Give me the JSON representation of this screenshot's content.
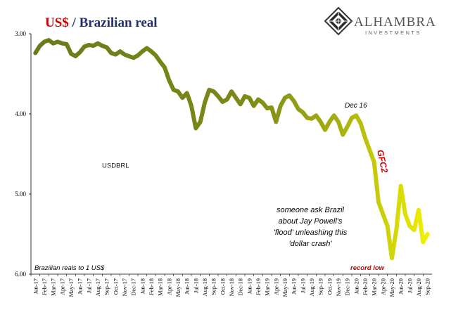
{
  "title": {
    "part1": "US$",
    "part2": " / Brazilian real"
  },
  "logo": {
    "name": "ALHAMBRA",
    "sub": "INVESTMENTS"
  },
  "colors": {
    "title_usd": "#cc0000",
    "title_rest": "#1f2f73",
    "line_start": "#6b7a1a",
    "line_end": "#f0f000",
    "annotation_red": "#cc0000"
  },
  "chart_data": {
    "type": "line",
    "y_reversed": true,
    "ylim": [
      3.0,
      6.0
    ],
    "y_ticks": [
      "3.00",
      "4.00",
      "5.00",
      "6.00"
    ],
    "y_tick_values": [
      3.0,
      4.0,
      5.0,
      6.0
    ],
    "x_ticks": [
      "Jan-17",
      "Feb-17",
      "Mar-17",
      "Apr-17",
      "May-17",
      "Jun-17",
      "Jul-17",
      "Aug-17",
      "Sep-17",
      "Oct-17",
      "Nov-17",
      "Dec-17",
      "Jan-18",
      "Feb-18",
      "Mar-18",
      "Apr-18",
      "May-18",
      "Jun-18",
      "Jul-18",
      "Aug-18",
      "Sep-18",
      "Oct-18",
      "Nov-18",
      "Dec-18",
      "Jan-19",
      "Feb-19",
      "Mar-19",
      "Apr-19",
      "May-19",
      "Jun-19",
      "Jul-19",
      "Aug-19",
      "Sep-19",
      "Oct-19",
      "Nov-19",
      "Dec-19",
      "Jan-20",
      "Feb-20",
      "Mar-20",
      "Apr-20",
      "May-20",
      "Jun-20",
      "Jul-20",
      "Aug-20",
      "Sep-20"
    ],
    "series": [
      {
        "name": "USDBRL",
        "x": [
          0,
          0.5,
          1,
          1.5,
          2,
          2.5,
          3,
          3.5,
          4,
          4.5,
          5,
          5.5,
          6,
          6.5,
          7,
          7.5,
          8,
          8.5,
          9,
          9.5,
          10,
          10.5,
          11,
          11.5,
          12,
          12.5,
          13,
          13.5,
          14,
          14.5,
          15,
          15.5,
          16,
          16.5,
          17,
          17.5,
          18,
          18.5,
          19,
          19.5,
          20,
          20.5,
          21,
          21.5,
          22,
          22.5,
          23,
          23.5,
          24,
          24.5,
          25,
          25.5,
          26,
          26.5,
          27,
          27.5,
          28,
          28.5,
          29,
          29.5,
          30,
          30.5,
          31,
          31.5,
          32,
          32.5,
          33,
          33.5,
          34,
          34.5,
          35,
          35.5,
          36,
          36.5,
          37,
          37.5,
          38,
          38.5,
          39,
          39.5,
          40,
          40.5,
          41,
          41.5,
          42,
          42.5,
          43,
          43.5,
          44
        ],
        "values": [
          3.24,
          3.15,
          3.1,
          3.08,
          3.12,
          3.1,
          3.12,
          3.13,
          3.25,
          3.28,
          3.23,
          3.16,
          3.14,
          3.15,
          3.12,
          3.15,
          3.17,
          3.24,
          3.26,
          3.22,
          3.26,
          3.28,
          3.3,
          3.27,
          3.22,
          3.18,
          3.22,
          3.27,
          3.35,
          3.42,
          3.58,
          3.7,
          3.72,
          3.8,
          3.74,
          3.9,
          4.18,
          4.1,
          3.86,
          3.7,
          3.72,
          3.78,
          3.85,
          3.82,
          3.72,
          3.8,
          3.88,
          3.78,
          3.8,
          3.9,
          3.82,
          3.86,
          3.93,
          3.92,
          4.1,
          3.9,
          3.8,
          3.77,
          3.84,
          3.94,
          3.98,
          4.05,
          4.06,
          4.02,
          4.1,
          4.2,
          4.1,
          4.02,
          4.1,
          4.26,
          4.16,
          4.05,
          4.02,
          4.12,
          4.3,
          4.45,
          4.6,
          5.1,
          5.25,
          5.4,
          5.8,
          5.45,
          4.9,
          5.25,
          5.4,
          5.45,
          5.2,
          5.6,
          5.5
        ]
      }
    ],
    "legend": "USDBRL",
    "legend_position": "left-middle",
    "grid": false,
    "annotations": {
      "dec16": "Dec 16",
      "gfc2": "GFC2",
      "note_line1": "someone ask Brazil",
      "note_line2": "about Jay Powell's",
      "note_line3": "'flood' unleashing this",
      "note_line4": "'dollar crash'",
      "record_low": "record low",
      "units": "Brazilian reals to 1 US$"
    }
  }
}
